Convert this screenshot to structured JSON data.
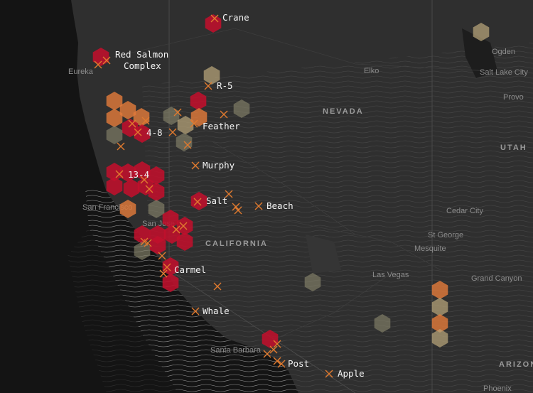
{
  "map": {
    "colors": {
      "ocean": "#141414",
      "land": "#2e2e2e",
      "hex_high": "#c0102c",
      "hex_medium": "#e07a3a",
      "hex_low": "#b8a57a",
      "hex_minimal": "#8d8a70",
      "fire_marker": "#e07a2f"
    },
    "state_labels": [
      "NEVADA",
      "UTAH",
      "CALIFORNIA",
      "ARIZONA"
    ],
    "cities": [
      "Eureka",
      "Elko",
      "Ogden",
      "Salt Lake City",
      "Provo",
      "San Francisco",
      "San Jose",
      "Cedar City",
      "St George",
      "Mesquite",
      "Las Vegas",
      "Grand Canyon",
      "Santa Barbara",
      "Phoenix"
    ],
    "fires": [
      "Crane",
      "Red Salmon\nComplex",
      "R-5",
      "Feather",
      "4-8",
      "Murphy",
      "13-4",
      "Salt",
      "Beach",
      "Carmel",
      "Whale",
      "Post",
      "Apple"
    ]
  }
}
